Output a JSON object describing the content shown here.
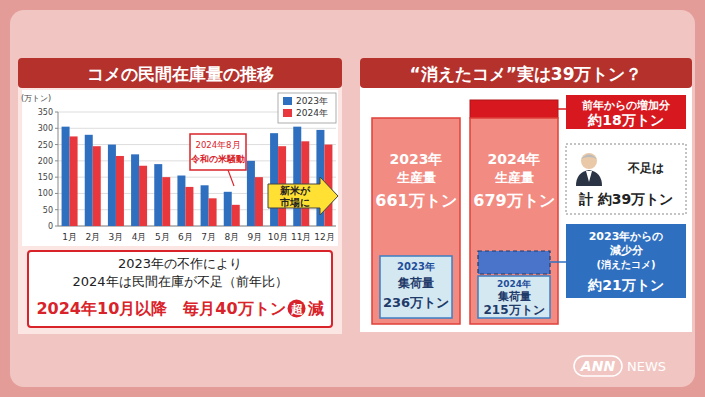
{
  "chart_data": {
    "type": "bar",
    "title": "コメの民間在庫量の推移",
    "y_label": "(万トン)",
    "categories": [
      "1月",
      "2月",
      "3月",
      "4月",
      "5月",
      "6月",
      "7月",
      "8月",
      "9月",
      "10月",
      "11月",
      "12月"
    ],
    "series": [
      {
        "name": "2023年",
        "color": "#2f6fc0",
        "values": [
          305,
          280,
          250,
          220,
          190,
          155,
          125,
          105,
          200,
          285,
          305,
          295
        ]
      },
      {
        "name": "2024年",
        "color": "#e8383d",
        "values": [
          275,
          245,
          215,
          185,
          150,
          120,
          85,
          65,
          150,
          245,
          260,
          250
        ]
      }
    ],
    "ylim": [
      0,
      350
    ],
    "yticks": [
      0,
      50,
      100,
      150,
      200,
      250,
      300,
      350
    ],
    "grid": true,
    "legend": "top-right",
    "annotations": [
      {
        "lines": [
          "2024年8月",
          "令和の米騒動"
        ]
      },
      {
        "lines": [
          "新米が",
          "市場に"
        ]
      }
    ]
  },
  "summary": {
    "lines": [
      "2023年の不作により",
      "2024年は民間在庫が不足（前年比）"
    ],
    "highlight": [
      "2024年10月以降　毎月40万トン",
      "超",
      "減"
    ]
  },
  "diagram": {
    "title": "“消えたコメ”実は39万トン？",
    "bars": [
      {
        "year": "2023年",
        "label": "生産量",
        "value": "661万トン",
        "sub": {
          "year": "2023年",
          "label": "集荷量",
          "value": "236万トン"
        }
      },
      {
        "year": "2024年",
        "label": "生産量",
        "value": "679万トン",
        "sub": {
          "year": "2024年",
          "label": "集荷量",
          "value": "215万トン"
        }
      }
    ],
    "increase": {
      "label": "前年からの増加分",
      "value": "約18万トン"
    },
    "shortage": {
      "label": "不足は",
      "value": "計 約39万トン"
    },
    "decrease": {
      "lines": [
        "2023年からの",
        "減少分",
        "(消えたコメ)"
      ],
      "value": "約21万トン"
    }
  },
  "logo": {
    "left": "ANN",
    "right": "NEWS"
  }
}
